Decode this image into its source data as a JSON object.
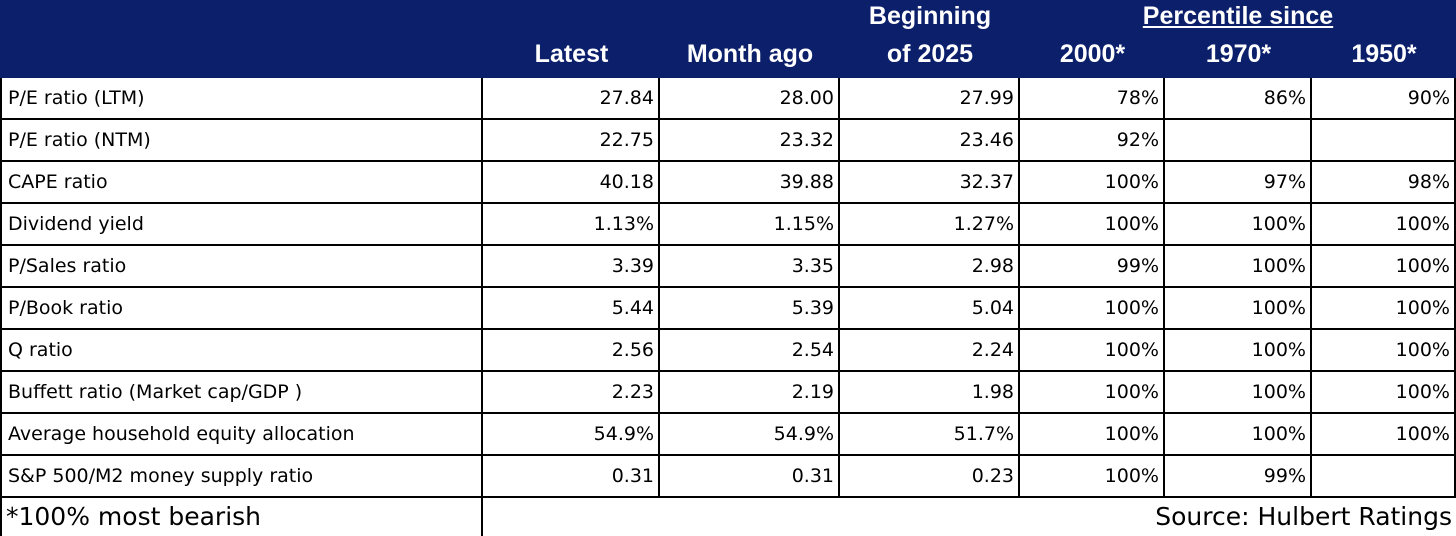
{
  "header": {
    "latest": "Latest",
    "month_ago": "Month ago",
    "beginning": [
      "Beginning",
      "of 2025"
    ],
    "group": "Percentile since",
    "years": [
      "2000*",
      "1970*",
      "1950*"
    ]
  },
  "rows": [
    {
      "label": "P/E ratio (LTM)",
      "values": [
        "27.84",
        "28.00",
        "27.99",
        "78%",
        "86%",
        "90%"
      ]
    },
    {
      "label": "P/E ratio (NTM)",
      "values": [
        "22.75",
        "23.32",
        "23.46",
        "92%",
        null,
        null
      ]
    },
    {
      "label": "CAPE ratio",
      "values": [
        "40.18",
        "39.88",
        "32.37",
        "100%",
        "97%",
        "98%"
      ]
    },
    {
      "label": "Dividend yield",
      "values": [
        "1.13%",
        "1.15%",
        "1.27%",
        "100%",
        "100%",
        "100%"
      ]
    },
    {
      "label": "P/Sales ratio",
      "values": [
        "3.39",
        "3.35",
        "2.98",
        "99%",
        "100%",
        "100%"
      ]
    },
    {
      "label": "P/Book ratio",
      "values": [
        "5.44",
        "5.39",
        "5.04",
        "100%",
        "100%",
        "100%"
      ]
    },
    {
      "label": "Q ratio",
      "values": [
        "2.56",
        "2.54",
        "2.24",
        "100%",
        "100%",
        "100%"
      ]
    },
    {
      "label": "Buffett ratio (Market cap/GDP )",
      "values": [
        "2.23",
        "2.19",
        "1.98",
        "100%",
        "100%",
        "100%"
      ]
    },
    {
      "label": "Average household equity allocation",
      "values": [
        "54.9%",
        "54.9%",
        "51.7%",
        "100%",
        "100%",
        "100%"
      ]
    },
    {
      "label": "S&P 500/M2 money supply ratio",
      "values": [
        "0.31",
        "0.31",
        "0.23",
        "100%",
        "99%",
        null
      ]
    }
  ],
  "footer": {
    "note": "*100% most bearish",
    "source": "Source: Hulbert Ratings"
  }
}
